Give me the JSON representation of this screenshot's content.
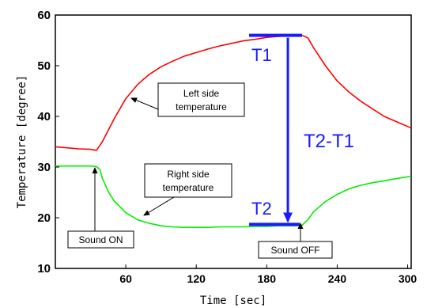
{
  "chart_data": {
    "type": "line",
    "xlabel": "Time [sec]",
    "ylabel": "Temperature [degree]",
    "xlim": [
      0,
      303
    ],
    "ylim": [
      10,
      60
    ],
    "xticks": [
      60,
      120,
      180,
      240,
      300
    ],
    "yticks": [
      10,
      20,
      30,
      40,
      50,
      60
    ],
    "grid": false,
    "series": [
      {
        "color": "#ff0000",
        "x": [
          0,
          10,
          20,
          30,
          35,
          40,
          50,
          60,
          70,
          80,
          90,
          100,
          110,
          120,
          130,
          140,
          150,
          160,
          170,
          180,
          190,
          200,
          205,
          210,
          215,
          220,
          230,
          240,
          250,
          260,
          270,
          280,
          290,
          303
        ],
        "y": [
          34,
          33.8,
          33.6,
          33.5,
          33.3,
          35.0,
          39.5,
          43.5,
          46.3,
          48.3,
          49.8,
          50.9,
          51.9,
          52.6,
          53.3,
          53.9,
          54.4,
          54.9,
          55.2,
          55.6,
          55.8,
          55.9,
          56.0,
          56.0,
          55.5,
          53.5,
          50.0,
          47.0,
          44.8,
          43.0,
          41.5,
          40.0,
          39.0,
          37.7
        ]
      },
      {
        "color": "#00ee00",
        "x": [
          0,
          10,
          20,
          30,
          35,
          38,
          40,
          45,
          50,
          60,
          70,
          80,
          90,
          100,
          110,
          120,
          130,
          140,
          150,
          160,
          170,
          180,
          190,
          200,
          205,
          210,
          215,
          220,
          230,
          240,
          250,
          260,
          270,
          280,
          290,
          303
        ],
        "y": [
          30.2,
          30.2,
          30.2,
          30.2,
          30.1,
          29.5,
          27.8,
          25.2,
          23.3,
          21.0,
          19.6,
          18.9,
          18.4,
          18.2,
          18.1,
          18.1,
          18.1,
          18.2,
          18.2,
          18.2,
          18.3,
          18.3,
          18.4,
          18.4,
          18.4,
          18.5,
          19.6,
          21.2,
          23.2,
          24.6,
          25.7,
          26.4,
          26.9,
          27.3,
          27.7,
          28.2
        ]
      }
    ],
    "markers": {
      "t1_label": "T1",
      "t1_y": 56,
      "t1_x": [
        165,
        210
      ],
      "t2_label": "T2",
      "t2_y": 18.7,
      "t2_x": [
        165,
        208
      ],
      "diff_label": "T2-T1",
      "arrow_x": 198
    },
    "annotations": {
      "left_side_line1": "Left side",
      "left_side_line2": "temperature",
      "right_side_line1": "Right side",
      "right_side_line2": "temperature",
      "sound_on": "Sound ON",
      "sound_off": "Sound OFF"
    }
  }
}
